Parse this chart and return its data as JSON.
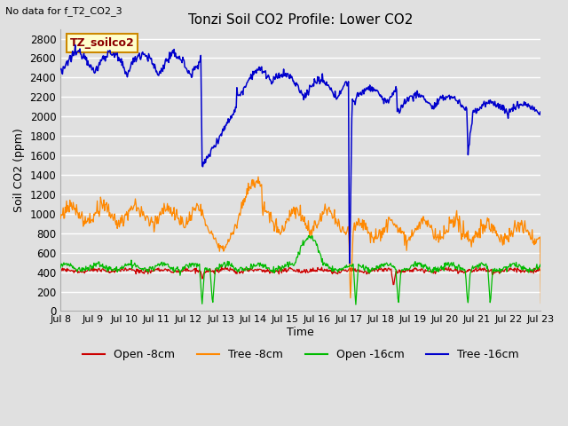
{
  "title": "Tonzi Soil CO2 Profile: Lower CO2",
  "subtitle": "No data for f_T2_CO2_3",
  "ylabel": "Soil CO2 (ppm)",
  "xlabel": "Time",
  "legend_label": "TZ_soilco2",
  "ylim": [
    0,
    2900
  ],
  "yticks": [
    0,
    200,
    400,
    600,
    800,
    1000,
    1200,
    1400,
    1600,
    1800,
    2000,
    2200,
    2400,
    2600,
    2800
  ],
  "xtick_labels": [
    "Jul 8",
    "Jul 9",
    "Jul 10",
    "Jul 11",
    "Jul 12",
    "Jul 13",
    "Jul 14",
    "Jul 15",
    "Jul 16",
    "Jul 17",
    "Jul 18",
    "Jul 19",
    "Jul 20",
    "Jul 21",
    "Jul 22",
    "Jul 23"
  ],
  "colors": {
    "open_8cm": "#cc0000",
    "tree_8cm": "#ff8800",
    "open_16cm": "#00bb00",
    "tree_16cm": "#0000cc"
  },
  "legend_entries": [
    "Open -8cm",
    "Tree -8cm",
    "Open -16cm",
    "Tree -16cm"
  ],
  "plot_background": "#e0e0e0",
  "grid_color": "#ffffff",
  "annotation_box_color": "#ffffcc",
  "annotation_box_edge": "#cc8800"
}
